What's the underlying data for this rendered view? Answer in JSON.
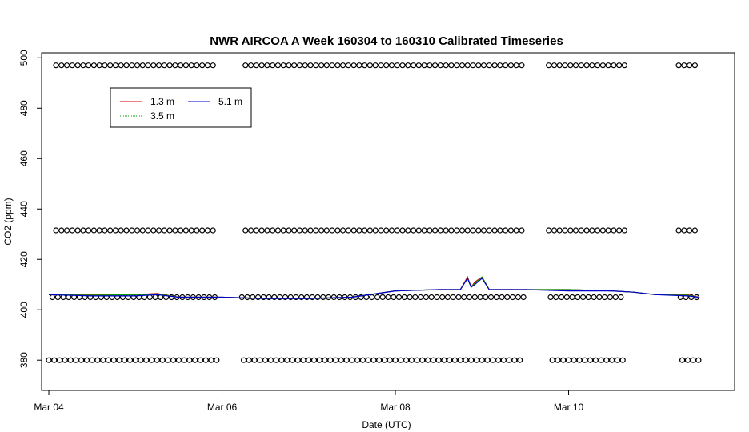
{
  "chart_data": {
    "type": "line",
    "title": "NWR AIRCOA A  Week 160304 to 160310  Calibrated Timeseries",
    "xlabel": "Date (UTC)",
    "ylabel": "CO2 (ppm)",
    "xlim": [
      "2016-03-03T22:00",
      "2016-03-11T22:00"
    ],
    "ylim": [
      368,
      502
    ],
    "x_ticks": [
      {
        "label": "Mar 04",
        "value": "2016-03-04T00:00"
      },
      {
        "label": "Mar 06",
        "value": "2016-03-06T00:00"
      },
      {
        "label": "Mar 08",
        "value": "2016-03-08T00:00"
      },
      {
        "label": "Mar 10",
        "value": "2016-03-10T00:00"
      }
    ],
    "y_ticks": [
      380,
      400,
      420,
      440,
      460,
      480,
      500
    ],
    "legend": {
      "placement": "top-left",
      "entries": [
        {
          "name": "1.3 m",
          "color": "#dd0000"
        },
        {
          "name": "3.5 m",
          "color": "#00a000"
        },
        {
          "name": "5.1 m",
          "color": "#0000cc"
        }
      ]
    },
    "series": [
      {
        "name": "1.3 m",
        "color": "#dd0000",
        "x": [
          "2016-03-04T00:00",
          "2016-03-04T12:00",
          "2016-03-05T00:00",
          "2016-03-05T06:00",
          "2016-03-05T12:00",
          "2016-03-06T00:00",
          "2016-03-06T12:00",
          "2016-03-07T00:00",
          "2016-03-07T12:00",
          "2016-03-08T00:00",
          "2016-03-08T12:00",
          "2016-03-08T18:00",
          "2016-03-08T20:00",
          "2016-03-08T21:00",
          "2016-03-08T22:00",
          "2016-03-09T00:00",
          "2016-03-09T02:00",
          "2016-03-09T12:00",
          "2016-03-10T00:00",
          "2016-03-10T12:00",
          "2016-03-10T18:00",
          "2016-03-11T00:00",
          "2016-03-11T09:00",
          "2016-03-11T12:00"
        ],
        "y": [
          406,
          406,
          406,
          406.5,
          405,
          405,
          404.5,
          404.5,
          405,
          407.5,
          408,
          408,
          413,
          409,
          411,
          413,
          408,
          408,
          408,
          407.5,
          407,
          406,
          406,
          405
        ]
      },
      {
        "name": "3.5 m",
        "color": "#00a000",
        "x": [
          "2016-03-04T00:00",
          "2016-03-04T12:00",
          "2016-03-05T00:00",
          "2016-03-05T06:00",
          "2016-03-05T12:00",
          "2016-03-06T00:00",
          "2016-03-06T12:00",
          "2016-03-07T00:00",
          "2016-03-07T12:00",
          "2016-03-08T00:00",
          "2016-03-08T12:00",
          "2016-03-08T18:00",
          "2016-03-08T20:00",
          "2016-03-08T21:00",
          "2016-03-08T22:00",
          "2016-03-09T00:00",
          "2016-03-09T02:00",
          "2016-03-09T12:00",
          "2016-03-10T00:00",
          "2016-03-10T12:00",
          "2016-03-10T18:00",
          "2016-03-11T00:00",
          "2016-03-11T09:00",
          "2016-03-11T12:00"
        ],
        "y": [
          406,
          405.8,
          406,
          406.3,
          405,
          405,
          404.5,
          404.5,
          405,
          407.5,
          408,
          408,
          412.5,
          409,
          410.5,
          413,
          408,
          408,
          408,
          407.5,
          407,
          406,
          405.8,
          405
        ]
      },
      {
        "name": "5.1 m",
        "color": "#0000cc",
        "x": [
          "2016-03-04T00:00",
          "2016-03-04T12:00",
          "2016-03-05T00:00",
          "2016-03-05T06:00",
          "2016-03-05T12:00",
          "2016-03-06T00:00",
          "2016-03-06T12:00",
          "2016-03-07T00:00",
          "2016-03-07T12:00",
          "2016-03-08T00:00",
          "2016-03-08T12:00",
          "2016-03-08T18:00",
          "2016-03-08T20:00",
          "2016-03-08T21:00",
          "2016-03-08T22:00",
          "2016-03-09T00:00",
          "2016-03-09T02:00",
          "2016-03-09T12:00",
          "2016-03-10T00:00",
          "2016-03-10T12:00",
          "2016-03-10T18:00",
          "2016-03-11T00:00",
          "2016-03-11T09:00",
          "2016-03-11T12:00"
        ],
        "y": [
          406,
          405.5,
          405.5,
          406,
          405,
          405,
          404.5,
          404.5,
          405,
          407.5,
          408,
          408,
          412.5,
          409,
          410,
          412.5,
          408,
          408,
          407.5,
          407.5,
          407,
          406,
          405.5,
          405
        ]
      }
    ],
    "reference_points": [
      {
        "y": 497,
        "x_start": "2016-03-04T02:00",
        "x_end": "2016-03-11T12:00",
        "step_hours": 1.5,
        "gaps": [
          [
            "2016-03-05T23:00",
            "2016-03-06T05:00"
          ],
          [
            "2016-03-09T12:00",
            "2016-03-09T18:00"
          ],
          [
            "2016-03-10T16:00",
            "2016-03-11T06:00"
          ]
        ]
      },
      {
        "y": 431.5,
        "x_start": "2016-03-04T02:00",
        "x_end": "2016-03-11T12:00",
        "step_hours": 1.5,
        "gaps": [
          [
            "2016-03-05T23:00",
            "2016-03-06T05:00"
          ],
          [
            "2016-03-09T12:00",
            "2016-03-09T18:00"
          ],
          [
            "2016-03-10T16:00",
            "2016-03-11T06:00"
          ]
        ]
      },
      {
        "y": 405,
        "x_start": "2016-03-04T01:00",
        "x_end": "2016-03-11T12:00",
        "step_hours": 1.5,
        "gaps": [
          [
            "2016-03-05T23:00",
            "2016-03-06T05:00"
          ],
          [
            "2016-03-09T12:00",
            "2016-03-09T18:00"
          ],
          [
            "2016-03-10T16:00",
            "2016-03-11T06:00"
          ]
        ]
      },
      {
        "y": 380,
        "x_start": "2016-03-04T00:00",
        "x_end": "2016-03-11T12:00",
        "step_hours": 1.5,
        "gaps": [
          [
            "2016-03-05T23:00",
            "2016-03-06T05:00"
          ],
          [
            "2016-03-09T12:00",
            "2016-03-09T18:00"
          ],
          [
            "2016-03-10T16:00",
            "2016-03-11T06:00"
          ]
        ]
      }
    ],
    "grid": false
  }
}
